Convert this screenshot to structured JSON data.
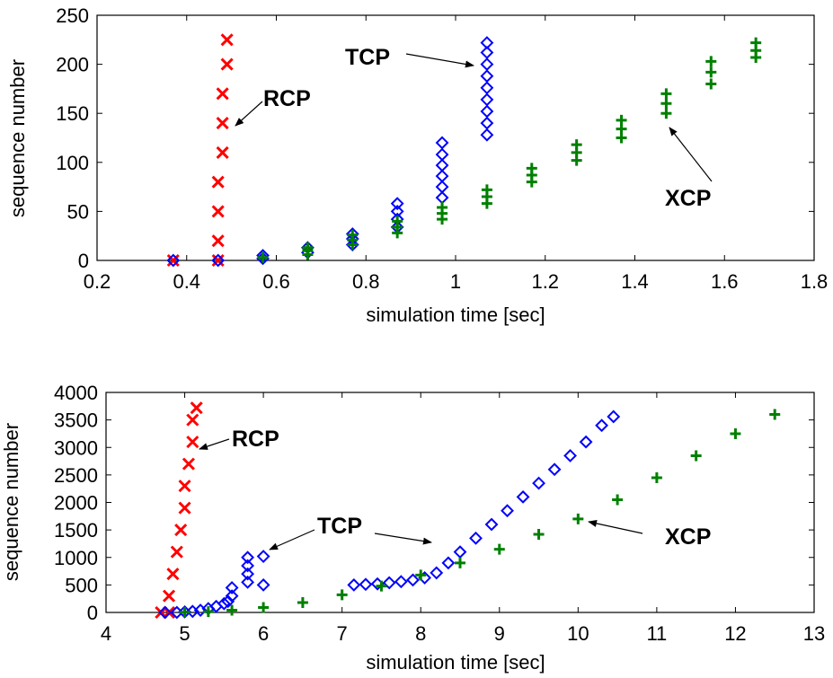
{
  "chart_data": [
    {
      "type": "scatter",
      "xlabel": "simulation time [sec]",
      "ylabel": "sequence number",
      "xlim": [
        0.2,
        1.8
      ],
      "ylim": [
        0,
        250
      ],
      "xticks": [
        0.2,
        0.4,
        0.6,
        0.8,
        1,
        1.2,
        1.4,
        1.6,
        1.8
      ],
      "yticks": [
        0,
        50,
        100,
        150,
        200,
        250
      ],
      "grid": false,
      "series": [
        {
          "name": "RCP",
          "color": "#ff0000",
          "marker": "x",
          "points": [
            [
              0.37,
              0
            ],
            [
              0.47,
              0
            ],
            [
              0.47,
              20
            ],
            [
              0.47,
              50
            ],
            [
              0.47,
              80
            ],
            [
              0.48,
              110
            ],
            [
              0.48,
              140
            ],
            [
              0.48,
              170
            ],
            [
              0.49,
              200
            ],
            [
              0.49,
              225
            ]
          ]
        },
        {
          "name": "TCP",
          "color": "#0000ff",
          "marker": "diamond",
          "points": [
            [
              0.37,
              0
            ],
            [
              0.47,
              0
            ],
            [
              0.57,
              2
            ],
            [
              0.57,
              5
            ],
            [
              0.67,
              8
            ],
            [
              0.67,
              13
            ],
            [
              0.77,
              16
            ],
            [
              0.77,
              22
            ],
            [
              0.77,
              27
            ],
            [
              0.87,
              34
            ],
            [
              0.87,
              42
            ],
            [
              0.87,
              50
            ],
            [
              0.87,
              58
            ],
            [
              0.97,
              64
            ],
            [
              0.97,
              75
            ],
            [
              0.97,
              86
            ],
            [
              0.97,
              97
            ],
            [
              0.97,
              108
            ],
            [
              0.97,
              120
            ],
            [
              1.07,
              128
            ],
            [
              1.07,
              140
            ],
            [
              1.07,
              152
            ],
            [
              1.07,
              164
            ],
            [
              1.07,
              176
            ],
            [
              1.07,
              188
            ],
            [
              1.07,
              200
            ],
            [
              1.07,
              212
            ],
            [
              1.07,
              222
            ]
          ]
        },
        {
          "name": "XCP",
          "color": "#008000",
          "marker": "plus",
          "points": [
            [
              0.57,
              3
            ],
            [
              0.67,
              6
            ],
            [
              0.67,
              10
            ],
            [
              0.67,
              13
            ],
            [
              0.77,
              16
            ],
            [
              0.77,
              21
            ],
            [
              0.77,
              26
            ],
            [
              0.87,
              28
            ],
            [
              0.87,
              34
            ],
            [
              0.87,
              40
            ],
            [
              0.97,
              42
            ],
            [
              0.97,
              48
            ],
            [
              0.97,
              54
            ],
            [
              1.07,
              58
            ],
            [
              1.07,
              65
            ],
            [
              1.07,
              72
            ],
            [
              1.17,
              80
            ],
            [
              1.17,
              87
            ],
            [
              1.17,
              94
            ],
            [
              1.27,
              102
            ],
            [
              1.27,
              110
            ],
            [
              1.27,
              118
            ],
            [
              1.37,
              125
            ],
            [
              1.37,
              134
            ],
            [
              1.37,
              143
            ],
            [
              1.47,
              150
            ],
            [
              1.47,
              160
            ],
            [
              1.47,
              170
            ],
            [
              1.57,
              180
            ],
            [
              1.57,
              192
            ],
            [
              1.57,
              203
            ],
            [
              1.67,
              207
            ],
            [
              1.67,
              214
            ],
            [
              1.67,
              222
            ]
          ]
        }
      ],
      "annotations": [
        {
          "text": "RCP",
          "series": "RCP"
        },
        {
          "text": "TCP",
          "series": "TCP"
        },
        {
          "text": "XCP",
          "series": "XCP"
        }
      ]
    },
    {
      "type": "scatter",
      "xlabel": "simulation time [sec]",
      "ylabel": "sequence number",
      "xlim": [
        4,
        13
      ],
      "ylim": [
        0,
        4000
      ],
      "xticks": [
        4,
        5,
        6,
        7,
        8,
        9,
        10,
        11,
        12,
        13
      ],
      "yticks": [
        0,
        500,
        1000,
        1500,
        2000,
        2500,
        3000,
        3500,
        4000
      ],
      "grid": false,
      "series": [
        {
          "name": "RCP",
          "color": "#ff0000",
          "marker": "x",
          "points": [
            [
              4.7,
              0
            ],
            [
              4.8,
              0
            ],
            [
              4.8,
              300
            ],
            [
              4.85,
              700
            ],
            [
              4.9,
              1100
            ],
            [
              4.95,
              1500
            ],
            [
              5.0,
              1900
            ],
            [
              5.0,
              2300
            ],
            [
              5.05,
              2700
            ],
            [
              5.1,
              3100
            ],
            [
              5.1,
              3500
            ],
            [
              5.15,
              3720
            ]
          ]
        },
        {
          "name": "TCP",
          "color": "#0000ff",
          "marker": "diamond",
          "points": [
            [
              4.75,
              0
            ],
            [
              4.9,
              0
            ],
            [
              5.0,
              10
            ],
            [
              5.1,
              20
            ],
            [
              5.2,
              40
            ],
            [
              5.3,
              70
            ],
            [
              5.4,
              110
            ],
            [
              5.5,
              160
            ],
            [
              5.55,
              200
            ],
            [
              5.6,
              300
            ],
            [
              5.6,
              450
            ],
            [
              5.8,
              550
            ],
            [
              5.8,
              700
            ],
            [
              5.8,
              850
            ],
            [
              5.8,
              1000
            ],
            [
              6.0,
              500
            ],
            [
              6.0,
              1020
            ],
            [
              7.15,
              500
            ],
            [
              7.3,
              510
            ],
            [
              7.45,
              520
            ],
            [
              7.6,
              540
            ],
            [
              7.75,
              560
            ],
            [
              7.9,
              590
            ],
            [
              8.05,
              630
            ],
            [
              8.2,
              720
            ],
            [
              8.35,
              900
            ],
            [
              8.5,
              1100
            ],
            [
              8.7,
              1350
            ],
            [
              8.9,
              1600
            ],
            [
              9.1,
              1850
            ],
            [
              9.3,
              2100
            ],
            [
              9.5,
              2350
            ],
            [
              9.7,
              2600
            ],
            [
              9.9,
              2850
            ],
            [
              10.1,
              3100
            ],
            [
              10.3,
              3400
            ],
            [
              10.45,
              3560
            ]
          ]
        },
        {
          "name": "XCP",
          "color": "#008000",
          "marker": "plus",
          "points": [
            [
              5.0,
              5
            ],
            [
              5.3,
              15
            ],
            [
              5.6,
              40
            ],
            [
              6.0,
              90
            ],
            [
              6.5,
              180
            ],
            [
              7.0,
              320
            ],
            [
              7.5,
              480
            ],
            [
              8.0,
              680
            ],
            [
              8.5,
              900
            ],
            [
              9.0,
              1150
            ],
            [
              9.5,
              1420
            ],
            [
              10.0,
              1700
            ],
            [
              10.5,
              2050
            ],
            [
              11.0,
              2450
            ],
            [
              11.5,
              2850
            ],
            [
              12.0,
              3250
            ],
            [
              12.5,
              3600
            ]
          ]
        }
      ],
      "annotations": [
        {
          "text": "RCP",
          "series": "RCP"
        },
        {
          "text": "TCP",
          "series": "TCP"
        },
        {
          "text": "XCP",
          "series": "XCP"
        }
      ]
    }
  ]
}
